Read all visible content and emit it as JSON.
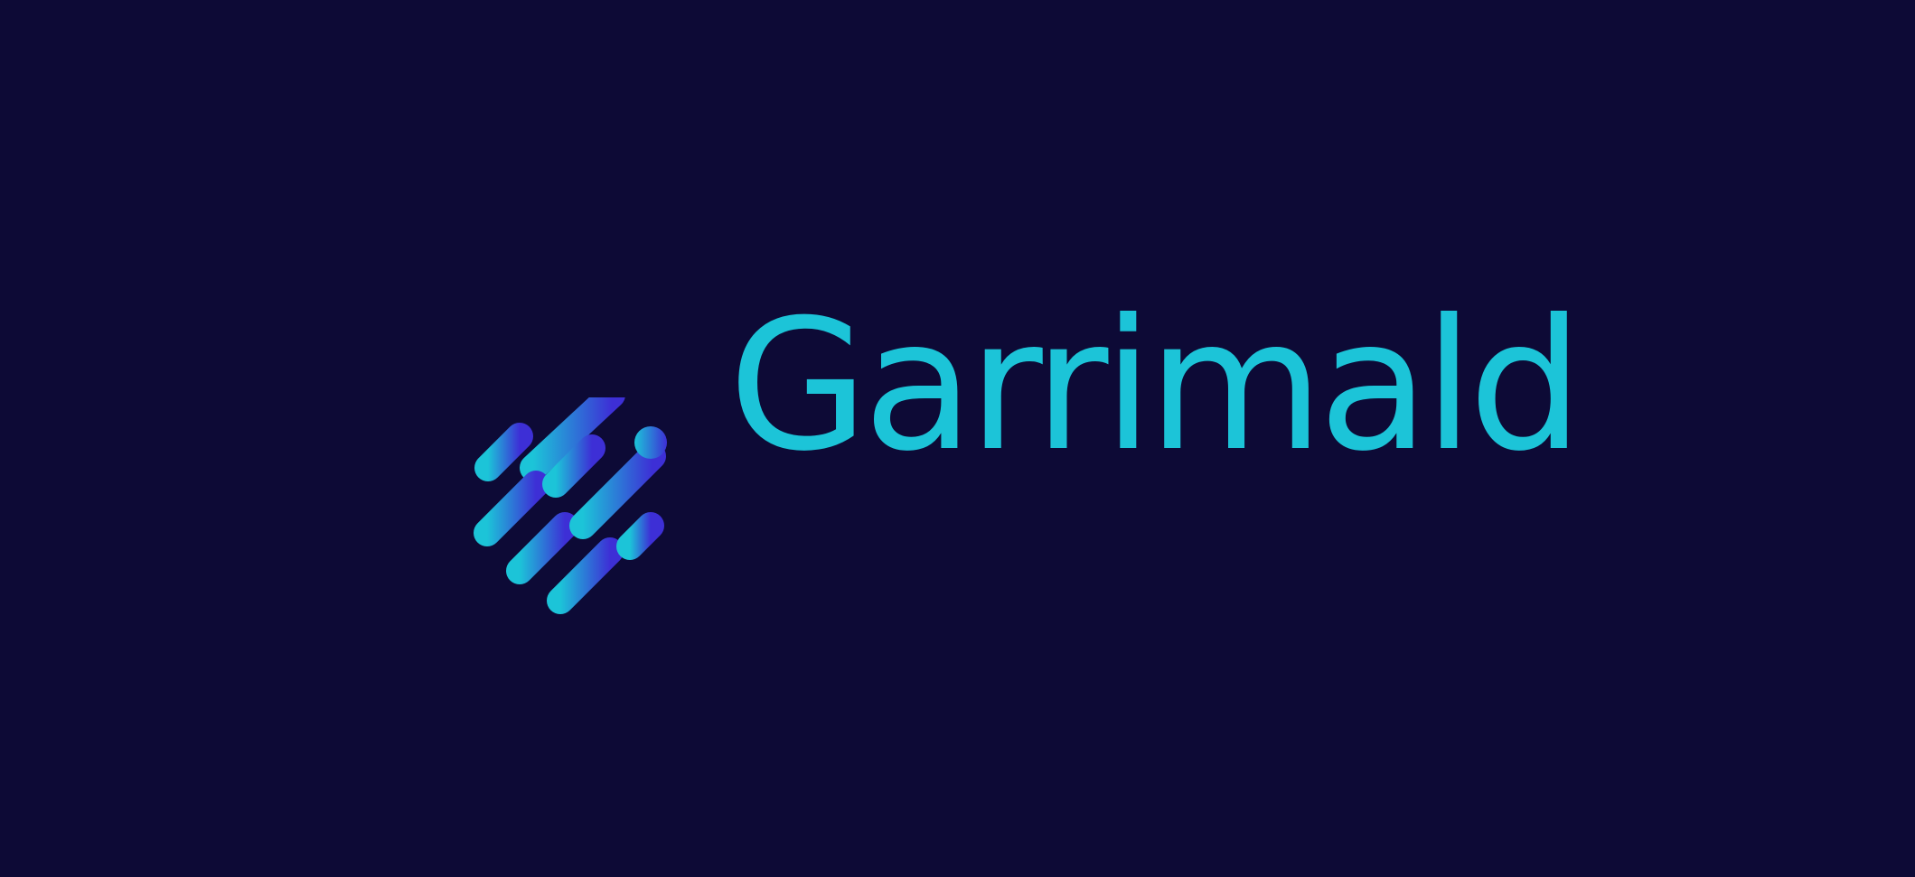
{
  "brand": {
    "name": "Garrimald",
    "text_color": "#1cc4d8",
    "background_color": "#0d0a36",
    "mark_gradient_start": "#1cc4d8",
    "mark_gradient_end": "#3d2fd6",
    "mark_icon": "diagonal-rounded-bars-logo-icon"
  }
}
